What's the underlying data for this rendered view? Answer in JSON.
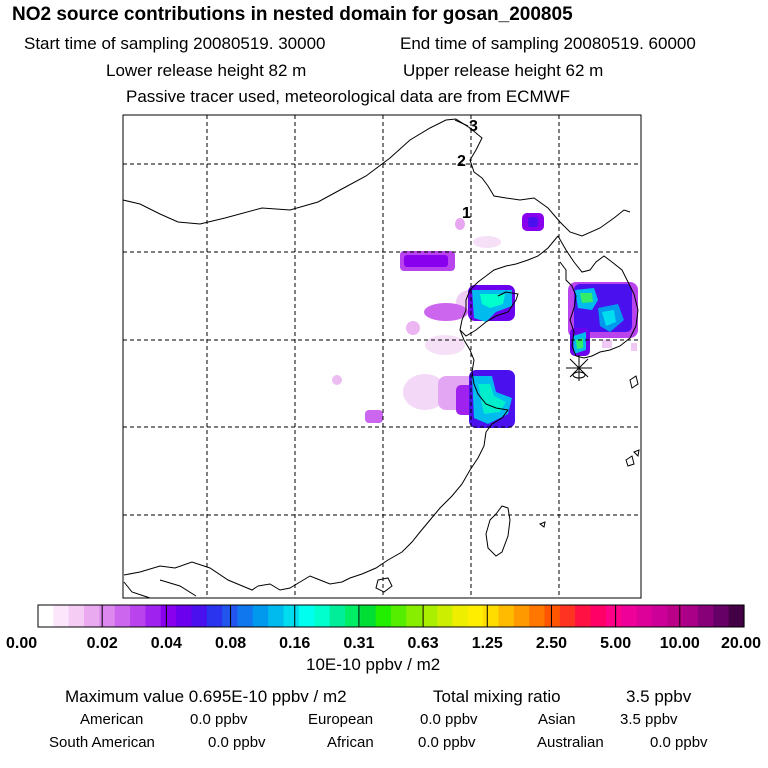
{
  "title": "NO2 source contributions in nested domain for gosan_200805",
  "header": {
    "start_label": "Start time of sampling 20080519. 30000",
    "end_label": "End time of sampling 20080519. 60000",
    "lower_label": "Lower release height   82 m",
    "upper_label": "Upper release height   62 m",
    "tracer_label": "Passive tracer used, meteorological data are from ECMWF"
  },
  "map": {
    "time_markers": [
      "1",
      "2",
      "3"
    ],
    "receptor_icon": "asterisk-receptor-icon"
  },
  "colorbar": {
    "tick_labels": [
      "0.00",
      "0.02",
      "0.04",
      "0.08",
      "0.16",
      "0.31",
      "0.63",
      "1.25",
      "2.50",
      "5.00",
      "10.00",
      "20.00"
    ],
    "units": "10E-10 ppbv / m2",
    "colors": [
      "#ffffff",
      "#fbe6fb",
      "#f4ccf4",
      "#eaaaf0",
      "#dd88ee",
      "#cc66ee",
      "#b944ee",
      "#a022ee",
      "#8800ee",
      "#6a00ee",
      "#4a11ee",
      "#2a33ee",
      "#2255ee",
      "#1177ee",
      "#0099ee",
      "#00bbee",
      "#00ddee",
      "#00ffee",
      "#00ffcc",
      "#00ee99",
      "#00ee66",
      "#00dd33",
      "#22ee00",
      "#55ee00",
      "#88ee00",
      "#aaee00",
      "#ccee00",
      "#eeee00",
      "#ffee00",
      "#ffdd00",
      "#ffbb00",
      "#ff9900",
      "#ff7700",
      "#ff5500",
      "#ff3322",
      "#ff1144",
      "#ff0066",
      "#ff0088",
      "#ee0099",
      "#dd0099",
      "#cc0099",
      "#bb0088",
      "#aa0088",
      "#880077",
      "#660066",
      "#440044"
    ]
  },
  "stats": {
    "max_label": "Maximum value  0.695E-10 ppbv / m2",
    "total_label": "Total mixing ratio",
    "total_value": "3.5 ppbv",
    "rows": [
      [
        {
          "name": "American",
          "value": "0.0 ppbv"
        },
        {
          "name": "European",
          "value": "0.0 ppbv"
        },
        {
          "name": "Asian",
          "value": "3.5 ppbv"
        }
      ],
      [
        {
          "name": "South American",
          "value": "0.0 ppbv"
        },
        {
          "name": "African",
          "value": "0.0 ppbv"
        },
        {
          "name": "Australian",
          "value": "0.0 ppbv"
        }
      ]
    ]
  }
}
